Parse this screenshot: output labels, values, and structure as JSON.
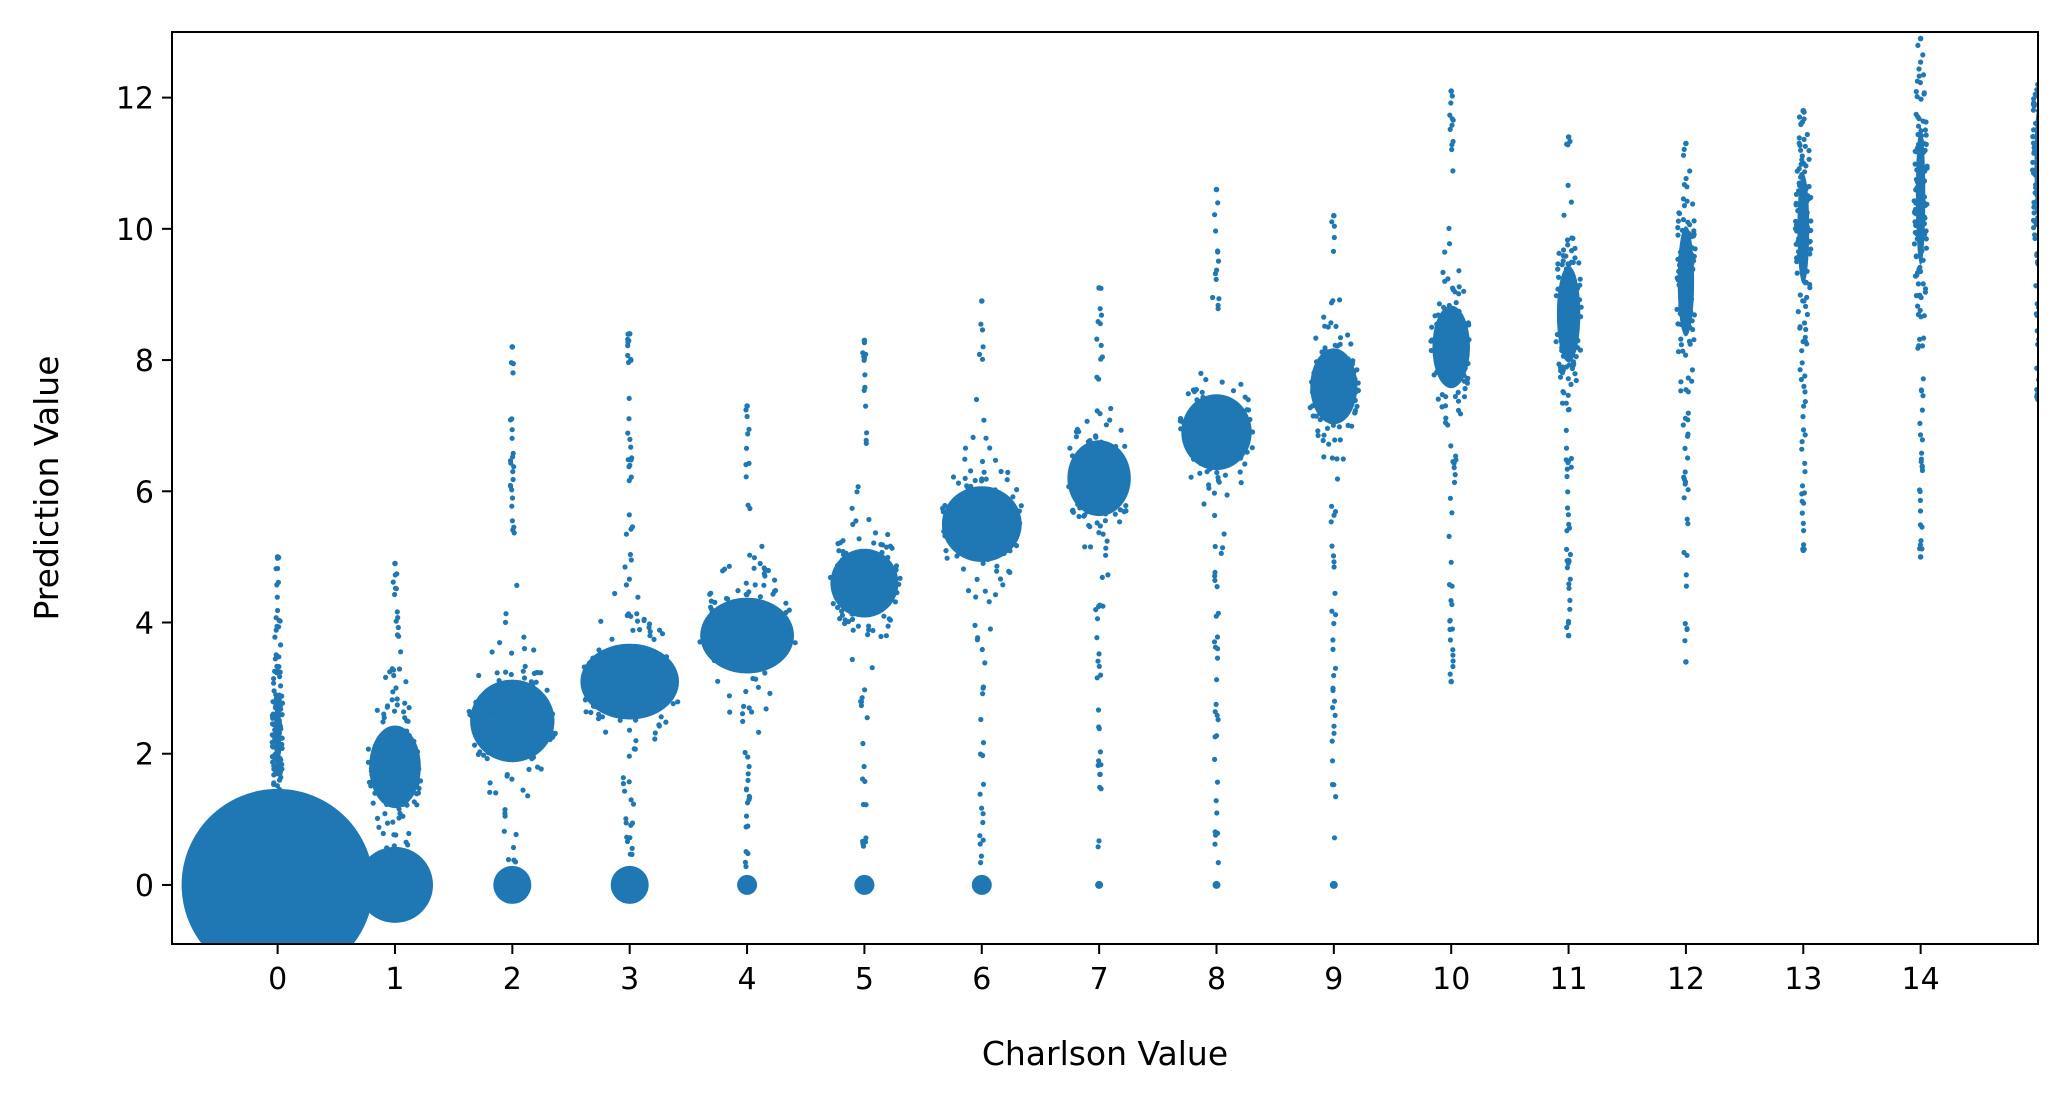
{
  "chart_data": {
    "type": "scatter",
    "title": "",
    "xlabel": "Charlson Value",
    "ylabel": "Prediction Value",
    "xlim": [
      -0.9,
      15.0
    ],
    "ylim": [
      -0.9,
      13.0
    ],
    "x_ticks": [
      "0",
      "1",
      "2",
      "3",
      "4",
      "5",
      "6",
      "7",
      "8",
      "9",
      "10",
      "11",
      "12",
      "13",
      "14"
    ],
    "y_ticks": [
      "0",
      "2",
      "4",
      "6",
      "8",
      "10",
      "12"
    ],
    "grid": false,
    "legend": "none",
    "color": "#1f77b4",
    "note_marker_size": "marker area proportional to number of patients at each (Charlson, prediction) value",
    "series": [
      {
        "x": 0,
        "zero_point_size": "very-large",
        "min": 0.0,
        "max": 5.0,
        "center": 2.3,
        "spread": 0.55,
        "halfwidth_rel": 0.03
      },
      {
        "x": 1,
        "zero_point_size": "large",
        "min": 0.0,
        "max": 4.9,
        "center": 1.8,
        "spread": 0.6,
        "halfwidth_rel": 0.22
      },
      {
        "x": 2,
        "zero_point_size": "medium",
        "min": 0.0,
        "max": 8.2,
        "center": 2.5,
        "spread": 0.6,
        "halfwidth_rel": 0.36
      },
      {
        "x": 3,
        "zero_point_size": "medium",
        "min": 0.0,
        "max": 8.4,
        "center": 3.1,
        "spread": 0.55,
        "halfwidth_rel": 0.42
      },
      {
        "x": 4,
        "zero_point_size": "small",
        "min": 0.0,
        "max": 7.3,
        "center": 3.8,
        "spread": 0.55,
        "halfwidth_rel": 0.4
      },
      {
        "x": 5,
        "zero_point_size": "small",
        "min": 0.0,
        "max": 8.3,
        "center": 4.6,
        "spread": 0.5,
        "halfwidth_rel": 0.29
      },
      {
        "x": 6,
        "zero_point_size": "small",
        "min": 0.0,
        "max": 8.9,
        "center": 5.5,
        "spread": 0.55,
        "halfwidth_rel": 0.34
      },
      {
        "x": 7,
        "zero_point_size": "tiny",
        "min": 0.0,
        "max": 9.1,
        "center": 6.2,
        "spread": 0.55,
        "halfwidth_rel": 0.27
      },
      {
        "x": 8,
        "zero_point_size": "tiny",
        "min": 0.0,
        "max": 10.6,
        "center": 6.9,
        "spread": 0.55,
        "halfwidth_rel": 0.3
      },
      {
        "x": 9,
        "zero_point_size": "tiny",
        "min": 0.0,
        "max": 10.2,
        "center": 7.6,
        "spread": 0.55,
        "halfwidth_rel": 0.2
      },
      {
        "x": 10,
        "zero_point_size": "none",
        "min": 3.1,
        "max": 12.1,
        "center": 8.2,
        "spread": 0.6,
        "halfwidth_rel": 0.16
      },
      {
        "x": 11,
        "zero_point_size": "none",
        "min": 3.8,
        "max": 11.4,
        "center": 8.7,
        "spread": 0.7,
        "halfwidth_rel": 0.1
      },
      {
        "x": 12,
        "zero_point_size": "none",
        "min": 3.4,
        "max": 11.3,
        "center": 9.2,
        "spread": 0.8,
        "halfwidth_rel": 0.07
      },
      {
        "x": 13,
        "zero_point_size": "none",
        "min": 5.1,
        "max": 11.8,
        "center": 10.0,
        "spread": 0.8,
        "halfwidth_rel": 0.05
      },
      {
        "x": 14,
        "zero_point_size": "none",
        "min": 5.0,
        "max": 12.9,
        "center": 10.5,
        "spread": 1.0,
        "halfwidth_rel": 0.04
      },
      {
        "x": 15,
        "zero_point_size": "none",
        "min": 7.4,
        "max": 12.2,
        "center": 11.0,
        "spread": 0.8,
        "halfwidth_rel": 0.03
      }
    ]
  }
}
